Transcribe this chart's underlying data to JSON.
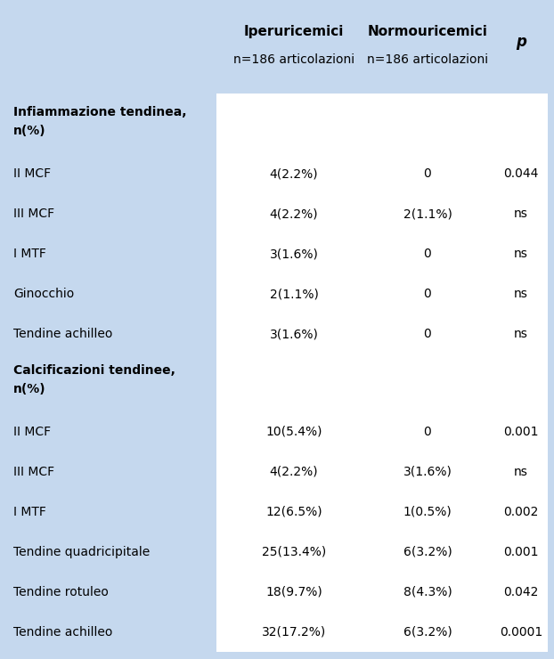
{
  "bg_color": "#c5d8ee",
  "white_bg": "#ffffff",
  "col_headers_line1": [
    "Iperuricemici",
    "Normouricemici",
    "p"
  ],
  "col_headers_line2": [
    "n=186 articolazioni",
    "n=186 articolazioni",
    ""
  ],
  "rows": [
    {
      "type": "section",
      "label": "Infiammazione tendinea,",
      "label2": "n(%)",
      "col1": "",
      "col2": "",
      "col3": ""
    },
    {
      "type": "data",
      "label": "II MCF",
      "label2": "",
      "col1": "4(2.2%)",
      "col2": "0",
      "col3": "0.044"
    },
    {
      "type": "data",
      "label": "III MCF",
      "label2": "",
      "col1": "4(2.2%)",
      "col2": "2(1.1%)",
      "col3": "ns"
    },
    {
      "type": "data",
      "label": "I MTF",
      "label2": "",
      "col1": "3(1.6%)",
      "col2": "0",
      "col3": "ns"
    },
    {
      "type": "data",
      "label": "Ginocchio",
      "label2": "",
      "col1": "2(1.1%)",
      "col2": "0",
      "col3": "ns"
    },
    {
      "type": "data",
      "label": "Tendine achilleo",
      "label2": "",
      "col1": "3(1.6%)",
      "col2": "0",
      "col3": "ns"
    },
    {
      "type": "section",
      "label": "Calcificazioni tendinee,",
      "label2": "n(%)",
      "col1": "",
      "col2": "",
      "col3": ""
    },
    {
      "type": "data",
      "label": "II MCF",
      "label2": "",
      "col1": "10(5.4%)",
      "col2": "0",
      "col3": "0.001"
    },
    {
      "type": "data",
      "label": "III MCF",
      "label2": "",
      "col1": "4(2.2%)",
      "col2": "3(1.6%)",
      "col3": "ns"
    },
    {
      "type": "data",
      "label": "I MTF",
      "label2": "",
      "col1": "12(6.5%)",
      "col2": "1(0.5%)",
      "col3": "0.002"
    },
    {
      "type": "data",
      "label": "Tendine quadricipitale",
      "label2": "",
      "col1": "25(13.4%)",
      "col2": "6(3.2%)",
      "col3": "0.001"
    },
    {
      "type": "data",
      "label": "Tendine rotuleo",
      "label2": "",
      "col1": "18(9.7%)",
      "col2": "8(4.3%)",
      "col3": "0.042"
    },
    {
      "type": "data",
      "label": "Tendine achilleo",
      "label2": "",
      "col1": "32(17.2%)",
      "col2": "6(3.2%)",
      "col3": "0.0001"
    }
  ],
  "figsize": [
    6.22,
    7.4
  ],
  "dpi": 100
}
